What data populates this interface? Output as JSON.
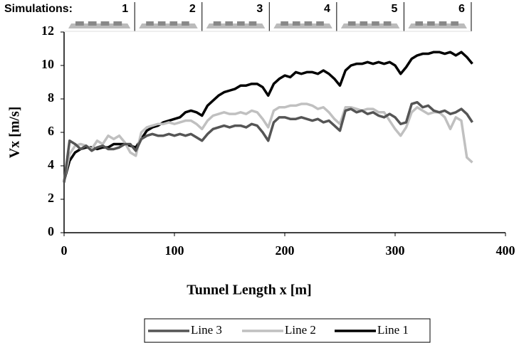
{
  "chart_data": {
    "type": "line",
    "x_label": "Tunnel Length x [m]",
    "y_label": "Vx [m/s]",
    "simulations_label": "Simulations:",
    "simulation_labels": [
      "1",
      "2",
      "3",
      "4",
      "5",
      "6"
    ],
    "simulation_bounds": [
      64,
      125,
      186,
      247,
      308,
      369
    ],
    "xlim": [
      0,
      400
    ],
    "xticks": [
      0,
      100,
      200,
      300,
      400
    ],
    "ylim": [
      0,
      12
    ],
    "yticks": [
      0,
      2,
      4,
      6,
      8,
      10,
      12
    ],
    "grid": false,
    "legend": "bottom",
    "x": [
      0,
      5,
      10,
      15,
      20,
      25,
      30,
      35,
      40,
      45,
      50,
      55,
      60,
      65,
      70,
      75,
      80,
      85,
      90,
      95,
      100,
      105,
      110,
      115,
      120,
      125,
      130,
      135,
      140,
      145,
      150,
      155,
      160,
      165,
      170,
      175,
      180,
      185,
      190,
      195,
      200,
      205,
      210,
      215,
      220,
      225,
      230,
      235,
      240,
      245,
      250,
      255,
      260,
      265,
      270,
      275,
      280,
      285,
      290,
      295,
      300,
      305,
      310,
      315,
      320,
      325,
      330,
      335,
      340,
      345,
      350,
      355,
      360,
      365,
      370
    ],
    "series": [
      {
        "name": "Line 3",
        "color": "#555555",
        "values": [
          3.0,
          5.5,
          5.3,
          5.0,
          5.2,
          4.9,
          5.1,
          5.2,
          5.0,
          5.0,
          5.1,
          5.3,
          5.3,
          4.9,
          5.6,
          5.8,
          5.9,
          5.8,
          5.8,
          5.9,
          5.8,
          5.9,
          5.8,
          5.9,
          5.7,
          5.5,
          5.9,
          6.2,
          6.3,
          6.4,
          6.3,
          6.4,
          6.4,
          6.3,
          6.5,
          6.4,
          6.0,
          5.5,
          6.6,
          6.9,
          6.9,
          6.8,
          6.8,
          6.9,
          6.8,
          6.7,
          6.8,
          6.6,
          6.7,
          6.4,
          6.1,
          7.3,
          7.4,
          7.2,
          7.3,
          7.1,
          7.2,
          7.0,
          6.9,
          7.1,
          6.9,
          6.5,
          6.6,
          7.7,
          7.8,
          7.5,
          7.6,
          7.3,
          7.2,
          7.3,
          7.1,
          7.2,
          7.4,
          7.1,
          6.6
        ]
      },
      {
        "name": "Line 2",
        "color": "#c0c0c0",
        "values": [
          3.1,
          4.7,
          5.2,
          5.3,
          5.2,
          5.0,
          5.5,
          5.3,
          5.8,
          5.6,
          5.8,
          5.4,
          4.8,
          4.6,
          6.0,
          6.3,
          6.4,
          6.5,
          6.5,
          6.6,
          6.5,
          6.6,
          6.7,
          6.7,
          6.5,
          6.2,
          6.7,
          7.0,
          7.1,
          7.2,
          7.1,
          7.1,
          7.2,
          7.1,
          7.3,
          7.2,
          6.8,
          6.3,
          7.3,
          7.5,
          7.5,
          7.6,
          7.6,
          7.7,
          7.7,
          7.6,
          7.4,
          7.5,
          7.2,
          6.8,
          6.5,
          7.5,
          7.5,
          7.4,
          7.3,
          7.4,
          7.4,
          7.2,
          7.2,
          6.7,
          6.2,
          5.8,
          6.3,
          7.2,
          7.5,
          7.3,
          7.1,
          7.2,
          7.2,
          6.9,
          6.2,
          6.9,
          6.7,
          4.5,
          4.2
        ]
      },
      {
        "name": "Line 1",
        "color": "#000000",
        "values": [
          3.1,
          4.3,
          4.8,
          5.0,
          5.1,
          5.1,
          5.0,
          5.1,
          5.1,
          5.3,
          5.3,
          5.3,
          5.2,
          5.1,
          5.6,
          6.1,
          6.3,
          6.4,
          6.6,
          6.7,
          6.8,
          6.9,
          7.2,
          7.3,
          7.2,
          7.0,
          7.6,
          7.9,
          8.2,
          8.4,
          8.5,
          8.6,
          8.8,
          8.8,
          8.9,
          8.9,
          8.7,
          8.2,
          8.9,
          9.2,
          9.4,
          9.3,
          9.6,
          9.5,
          9.6,
          9.6,
          9.5,
          9.7,
          9.5,
          9.2,
          8.8,
          9.7,
          10.0,
          10.1,
          10.1,
          10.2,
          10.1,
          10.2,
          10.1,
          10.2,
          10.0,
          9.5,
          9.9,
          10.4,
          10.6,
          10.7,
          10.7,
          10.8,
          10.8,
          10.7,
          10.8,
          10.6,
          10.8,
          10.5,
          10.1
        ]
      }
    ]
  }
}
